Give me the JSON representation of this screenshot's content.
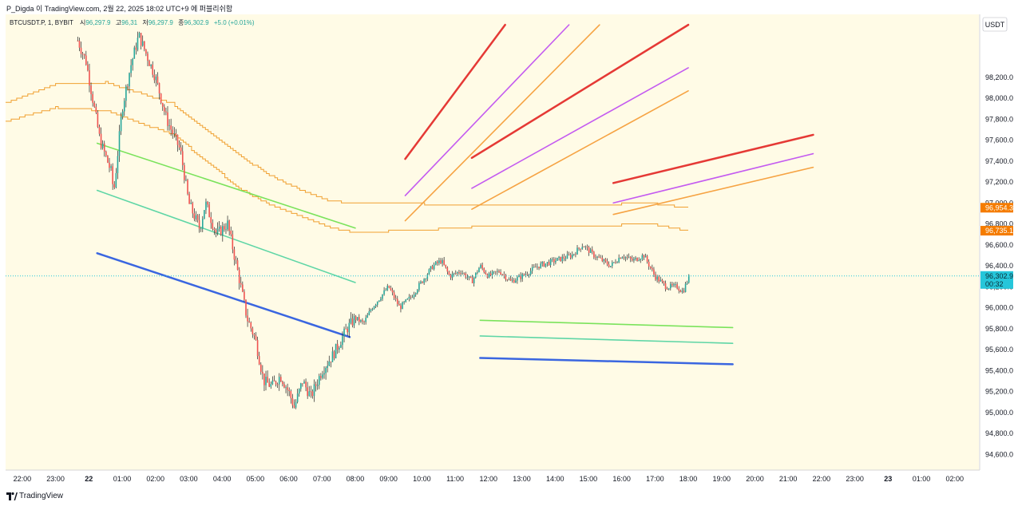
{
  "header": {
    "caption": "P_Digda 이 TradingView.com, 2월 22, 2025 18:02 UTC+9 에 퍼블리쉬함"
  },
  "legend": {
    "symbol": "BTCUSDT.P, 1, BYBIT",
    "open_label": "시",
    "open": "96,297.9",
    "high_label": "고",
    "high": "96,31",
    "low_label": "저",
    "low": "96,297.9",
    "close_label": "종",
    "close": "96,302.9",
    "change": "+5.0 (+0.01%)"
  },
  "footer": {
    "brand": "TradingView",
    "logo": "tradingview-logo"
  },
  "colors": {
    "background": "#fffbe6",
    "up": "#26a69a",
    "down": "#ef5350",
    "red": "#e53935",
    "purple": "#c45bf0",
    "orange": "#f6a343",
    "green": "#7be35c",
    "teal": "#5fd6a6",
    "blue": "#3a66e0",
    "band": "#f0a030",
    "tag_orange": "#f57c00",
    "tag_cyan": "#26c6da"
  },
  "chart_data": {
    "type": "candlestick",
    "currency": "USDT",
    "ylim": [
      94450,
      98800
    ],
    "yticks": [
      94600,
      94800,
      95000,
      95200,
      95400,
      95600,
      95800,
      96000,
      96200,
      96400,
      96600,
      96800,
      97000,
      97200,
      97400,
      97600,
      97800,
      98000,
      98200
    ],
    "ytick_labels": [
      "94,600.0",
      "94,800.0",
      "95,000.0",
      "95,200.0",
      "95,400.0",
      "95,600.0",
      "95,800.0",
      "96,000.0",
      "96,200.0",
      "96,400.0",
      "96,600.0",
      "96,800.0",
      "97,000.0",
      "97,200.0",
      "97,400.0",
      "97,600.0",
      "97,800.0",
      "98,000.0",
      "98,200.0"
    ],
    "xlim": [
      "02-21 21:30",
      "02-23 02:45"
    ],
    "xticks": [
      "02-21 22:00",
      "02-21 23:00",
      "02-22 00:00",
      "02-22 01:00",
      "02-22 02:00",
      "02-22 03:00",
      "02-22 04:00",
      "02-22 05:00",
      "02-22 06:00",
      "02-22 07:00",
      "02-22 08:00",
      "02-22 09:00",
      "02-22 10:00",
      "02-22 11:00",
      "02-22 12:00",
      "02-22 13:00",
      "02-22 14:00",
      "02-22 15:00",
      "02-22 16:00",
      "02-22 17:00",
      "02-22 18:00",
      "02-22 19:00",
      "02-22 20:00",
      "02-22 21:00",
      "02-22 22:00",
      "02-22 23:00",
      "02-23 00:00",
      "02-23 01:00",
      "02-23 02:00"
    ],
    "xtick_labels": [
      "22:00",
      "23:00",
      "22",
      "01:00",
      "02:00",
      "03:00",
      "04:00",
      "05:00",
      "06:00",
      "07:00",
      "08:00",
      "09:00",
      "10:00",
      "11:00",
      "12:00",
      "13:00",
      "14:00",
      "15:00",
      "16:00",
      "17:00",
      "18:00",
      "19:00",
      "20:00",
      "21:00",
      "22:00",
      "23:00",
      "23",
      "01:00",
      "02:00"
    ],
    "close_path": [
      [
        "02-21 23:40",
        98550
      ],
      [
        "02-21 23:55",
        98350
      ],
      [
        "02-22 00:20",
        97600
      ],
      [
        "02-22 00:40",
        97300
      ],
      [
        "02-22 00:45",
        97100
      ],
      [
        "02-22 01:00",
        97900
      ],
      [
        "02-22 01:15",
        98300
      ],
      [
        "02-22 01:30",
        98600
      ],
      [
        "02-22 01:45",
        98400
      ],
      [
        "02-22 02:00",
        98200
      ],
      [
        "02-22 02:20",
        97800
      ],
      [
        "02-22 02:45",
        97500
      ],
      [
        "02-22 03:00",
        97000
      ],
      [
        "02-22 03:20",
        96750
      ],
      [
        "02-22 03:30",
        97000
      ],
      [
        "02-22 03:50",
        96700
      ],
      [
        "02-22 04:10",
        96800
      ],
      [
        "02-22 04:30",
        96300
      ],
      [
        "02-22 04:45",
        95900
      ],
      [
        "02-22 05:00",
        95700
      ],
      [
        "02-22 05:15",
        95300
      ],
      [
        "02-22 05:30",
        95250
      ],
      [
        "02-22 05:45",
        95350
      ],
      [
        "02-22 06:00",
        95200
      ],
      [
        "02-22 06:10",
        95050
      ],
      [
        "02-22 06:25",
        95300
      ],
      [
        "02-22 06:40",
        95150
      ],
      [
        "02-22 07:00",
        95400
      ],
      [
        "02-22 07:20",
        95550
      ],
      [
        "02-22 07:45",
        95800
      ],
      [
        "02-22 08:00",
        95900
      ],
      [
        "02-22 08:15",
        95850
      ],
      [
        "02-22 08:30",
        96000
      ],
      [
        "02-22 08:45",
        96100
      ],
      [
        "02-22 09:00",
        96200
      ],
      [
        "02-22 09:20",
        96000
      ],
      [
        "02-22 09:40",
        96100
      ],
      [
        "02-22 10:00",
        96250
      ],
      [
        "02-22 10:20",
        96400
      ],
      [
        "02-22 10:35",
        96450
      ],
      [
        "02-22 10:50",
        96300
      ],
      [
        "02-22 11:10",
        96350
      ],
      [
        "02-22 11:30",
        96250
      ],
      [
        "02-22 11:45",
        96400
      ],
      [
        "02-22 12:00",
        96300
      ],
      [
        "02-22 12:20",
        96350
      ],
      [
        "02-22 12:40",
        96250
      ],
      [
        "02-22 13:00",
        96300
      ],
      [
        "02-22 13:30",
        96400
      ],
      [
        "02-22 14:00",
        96450
      ],
      [
        "02-22 14:30",
        96500
      ],
      [
        "02-22 14:50",
        96600
      ],
      [
        "02-22 15:10",
        96500
      ],
      [
        "02-22 15:40",
        96400
      ],
      [
        "02-22 16:00",
        96500
      ],
      [
        "02-22 16:20",
        96450
      ],
      [
        "02-22 16:40",
        96500
      ],
      [
        "02-22 17:00",
        96300
      ],
      [
        "02-22 17:20",
        96200
      ],
      [
        "02-22 17:40",
        96200
      ],
      [
        "02-22 17:50",
        96150
      ],
      [
        "02-22 18:02",
        96302.9
      ]
    ],
    "bands": [
      {
        "name": "upper_band",
        "points": [
          [
            "02-21 21:30",
            97950
          ],
          [
            "02-21 23:00",
            98130
          ],
          [
            "02-22 00:30",
            98150
          ],
          [
            "02-22 01:30",
            98050
          ],
          [
            "02-22 02:30",
            97950
          ],
          [
            "02-22 03:30",
            97700
          ],
          [
            "02-22 04:30",
            97450
          ],
          [
            "02-22 05:30",
            97250
          ],
          [
            "02-22 06:30",
            97100
          ],
          [
            "02-22 07:15",
            97020
          ],
          [
            "02-22 08:00",
            96990
          ],
          [
            "02-22 10:00",
            96990
          ],
          [
            "02-22 12:00",
            96980
          ],
          [
            "02-22 14:00",
            96970
          ],
          [
            "02-22 16:00",
            96990
          ],
          [
            "02-22 17:00",
            96990
          ],
          [
            "02-22 18:00",
            96954
          ]
        ]
      },
      {
        "name": "lower_band",
        "points": [
          [
            "02-21 21:30",
            97780
          ],
          [
            "02-21 23:00",
            97910
          ],
          [
            "02-22 00:30",
            97880
          ],
          [
            "02-22 01:30",
            97760
          ],
          [
            "02-22 02:30",
            97660
          ],
          [
            "02-22 03:30",
            97400
          ],
          [
            "02-22 04:30",
            97140
          ],
          [
            "02-22 05:30",
            96970
          ],
          [
            "02-22 06:30",
            96850
          ],
          [
            "02-22 07:15",
            96760
          ],
          [
            "02-22 08:00",
            96720
          ],
          [
            "02-22 10:00",
            96740
          ],
          [
            "02-22 12:00",
            96780
          ],
          [
            "02-22 14:00",
            96780
          ],
          [
            "02-22 16:00",
            96790
          ],
          [
            "02-22 17:00",
            96790
          ],
          [
            "02-22 18:00",
            96735
          ]
        ]
      }
    ],
    "trendlines": [
      {
        "color": "red",
        "width": 2.5,
        "from": [
          "02-22 09:30",
          97420
        ],
        "to": [
          "02-22 12:30",
          98700
        ]
      },
      {
        "color": "purple",
        "width": 1.6,
        "from": [
          "02-22 09:30",
          97070
        ],
        "to": [
          "02-22 14:25",
          98700
        ]
      },
      {
        "color": "orange",
        "width": 1.6,
        "from": [
          "02-22 09:30",
          96830
        ],
        "to": [
          "02-22 15:20",
          98700
        ]
      },
      {
        "color": "red",
        "width": 2.5,
        "from": [
          "02-22 11:30",
          97430
        ],
        "to": [
          "02-22 18:00",
          98700
        ]
      },
      {
        "color": "purple",
        "width": 1.6,
        "from": [
          "02-22 11:30",
          97140
        ],
        "to": [
          "02-22 18:00",
          98290
        ]
      },
      {
        "color": "orange",
        "width": 1.6,
        "from": [
          "02-22 11:30",
          96940
        ],
        "to": [
          "02-22 18:00",
          98070
        ]
      },
      {
        "color": "red",
        "width": 2.5,
        "from": [
          "02-22 15:45",
          97190
        ],
        "to": [
          "02-22 21:45",
          97650
        ]
      },
      {
        "color": "purple",
        "width": 1.6,
        "from": [
          "02-22 15:45",
          97000
        ],
        "to": [
          "02-22 21:45",
          97470
        ]
      },
      {
        "color": "orange",
        "width": 1.6,
        "from": [
          "02-22 15:45",
          96890
        ],
        "to": [
          "02-22 21:45",
          97340
        ]
      },
      {
        "color": "green",
        "width": 1.6,
        "from": [
          "02-22 00:15",
          97570
        ],
        "to": [
          "02-22 08:00",
          96760
        ]
      },
      {
        "color": "teal",
        "width": 1.6,
        "from": [
          "02-22 00:15",
          97120
        ],
        "to": [
          "02-22 08:00",
          96240
        ]
      },
      {
        "color": "blue",
        "width": 2.5,
        "from": [
          "02-22 00:15",
          96520
        ],
        "to": [
          "02-22 07:50",
          95720
        ]
      },
      {
        "color": "green",
        "width": 1.6,
        "from": [
          "02-22 11:45",
          95880
        ],
        "to": [
          "02-22 19:20",
          95810
        ]
      },
      {
        "color": "teal",
        "width": 1.6,
        "from": [
          "02-22 11:45",
          95730
        ],
        "to": [
          "02-22 19:20",
          95660
        ]
      },
      {
        "color": "blue",
        "width": 2.5,
        "from": [
          "02-22 11:45",
          95520
        ],
        "to": [
          "02-22 19:20",
          95460
        ]
      }
    ],
    "last_price_line": 96302.9,
    "price_tags": [
      {
        "name": "upper_band_tag",
        "value": 96954.3,
        "label": "96,954.3",
        "color": "tag_orange"
      },
      {
        "name": "lower_band_tag",
        "value": 96735.1,
        "label": "96,735.1",
        "color": "tag_orange"
      },
      {
        "name": "last_price_tag",
        "value": 96302.9,
        "label": "96,302.9",
        "sublabel": "00:32",
        "color": "tag_cyan"
      }
    ]
  }
}
